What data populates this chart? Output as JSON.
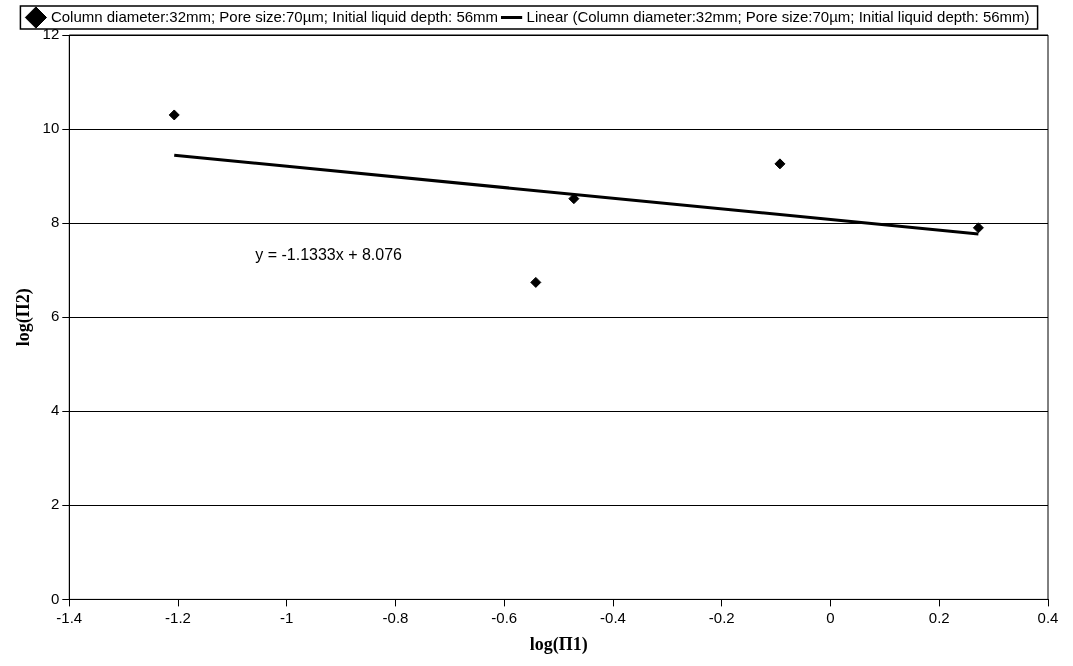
{
  "chart_data": {
    "type": "scatter",
    "xlabel": "log(Π1)",
    "ylabel": "log(Π2)",
    "xlim": [
      -1.4,
      0.4
    ],
    "xticks": [
      -1.4,
      -1.2,
      -1,
      -0.8,
      -0.6,
      -0.4,
      -0.2,
      0,
      0.2,
      0.4
    ],
    "ylim": [
      0,
      12
    ],
    "yticks": [
      0,
      2,
      4,
      6,
      8,
      10,
      12
    ],
    "grid": "y",
    "legend": "top",
    "marker": "diamond",
    "series": [
      {
        "name": "Column diameter:32mm; Pore size:70µm; Initial liquid depth: 56mm",
        "color": "#000000",
        "x": [
          -1.207,
          -0.542,
          -0.472,
          -0.093,
          0.272
        ],
        "values": [
          10.3,
          6.74,
          8.52,
          9.26,
          7.9
        ]
      },
      {
        "type": "line",
        "marker": "none",
        "line_style": "solid",
        "name": "Linear (Column diameter:32mm; Pore size:70µm; Initial liquid depth: 56mm)",
        "color": "#000000",
        "x": [
          -1.207,
          0.272
        ],
        "values": [
          9.444,
          7.768
        ]
      }
    ],
    "annotations": [
      "y = -1.1333x + 8.076"
    ]
  }
}
